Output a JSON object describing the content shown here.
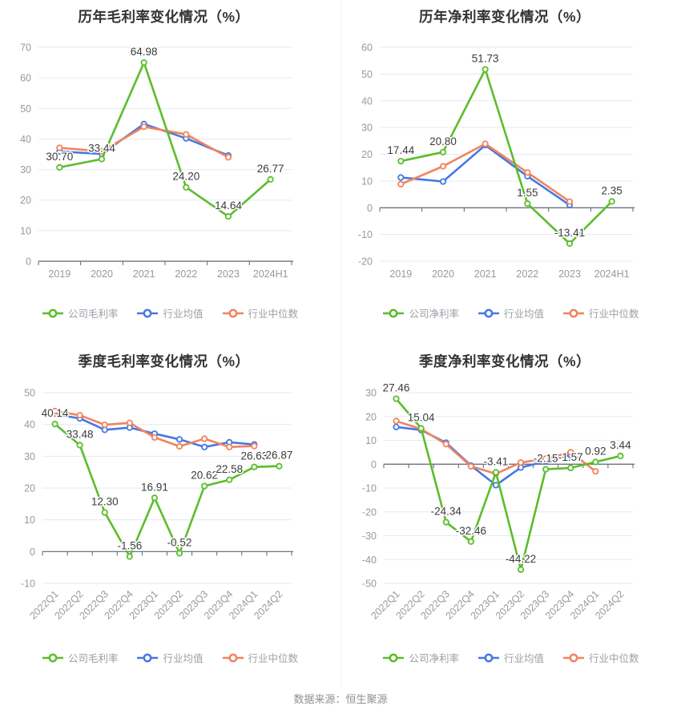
{
  "page": {
    "footer": "数据来源：恒生聚源",
    "background": "#ffffff"
  },
  "colors": {
    "company": "#5bbd2b",
    "industry_avg": "#4678e3",
    "industry_median": "#f2835b",
    "grid_line": "#e4eaf4",
    "axis_line": "#5e6470",
    "tick_label": "#999999",
    "data_label": "#3b3b3b",
    "title": "#333333"
  },
  "chart_data": [
    {
      "type": "line",
      "title": "历年毛利率变化情况（%）",
      "categories": [
        "2019",
        "2020",
        "2021",
        "2022",
        "2023",
        "2024H1"
      ],
      "ylim": [
        0,
        70
      ],
      "ytick_step": 10,
      "grid": true,
      "legend_position": "bottom",
      "rotate_x_labels": false,
      "series": [
        {
          "name": "公司毛利率",
          "color": "#5bbd2b",
          "labeled": true,
          "values": [
            30.7,
            33.44,
            64.98,
            24.2,
            14.64,
            26.77
          ]
        },
        {
          "name": "行业均值",
          "color": "#4678e3",
          "labeled": false,
          "values": [
            35.9,
            35.1,
            44.9,
            40.2,
            34.6,
            null
          ]
        },
        {
          "name": "行业中位数",
          "color": "#f2835b",
          "labeled": false,
          "values": [
            37.1,
            36.0,
            44.0,
            41.5,
            34.0,
            null
          ]
        }
      ]
    },
    {
      "type": "line",
      "title": "历年净利率变化情况（%）",
      "categories": [
        "2019",
        "2020",
        "2021",
        "2022",
        "2023",
        "2024H1"
      ],
      "ylim": [
        -20,
        60
      ],
      "ytick_step": 10,
      "grid": true,
      "legend_position": "bottom",
      "rotate_x_labels": false,
      "series": [
        {
          "name": "公司净利率",
          "color": "#5bbd2b",
          "labeled": true,
          "values": [
            17.44,
            20.8,
            51.73,
            1.55,
            -13.41,
            2.35
          ]
        },
        {
          "name": "行业均值",
          "color": "#4678e3",
          "labeled": false,
          "values": [
            11.3,
            9.8,
            23.4,
            11.8,
            1.0,
            null
          ]
        },
        {
          "name": "行业中位数",
          "color": "#f2835b",
          "labeled": false,
          "values": [
            8.8,
            15.5,
            23.9,
            13.2,
            2.3,
            null
          ]
        }
      ]
    },
    {
      "type": "line",
      "title": "季度毛利率变化情况（%）",
      "categories": [
        "2022Q1",
        "2022Q2",
        "2022Q3",
        "2022Q4",
        "2023Q1",
        "2023Q2",
        "2023Q3",
        "2023Q4",
        "2024Q1",
        "2024Q2"
      ],
      "ylim": [
        -10,
        50
      ],
      "ytick_step": 10,
      "grid": true,
      "legend_position": "bottom",
      "rotate_x_labels": true,
      "series": [
        {
          "name": "公司毛利率",
          "color": "#5bbd2b",
          "labeled": true,
          "values": [
            40.14,
            33.48,
            12.3,
            -1.56,
            16.91,
            -0.52,
            20.62,
            22.58,
            26.63,
            26.87
          ]
        },
        {
          "name": "行业均值",
          "color": "#4678e3",
          "labeled": false,
          "values": [
            43.2,
            41.9,
            38.3,
            39.0,
            37.1,
            35.3,
            32.9,
            34.4,
            33.7,
            null
          ]
        },
        {
          "name": "行业中位数",
          "color": "#f2835b",
          "labeled": false,
          "values": [
            44.2,
            42.9,
            39.9,
            40.5,
            35.9,
            33.1,
            35.5,
            32.9,
            33.2,
            null
          ]
        }
      ]
    },
    {
      "type": "line",
      "title": "季度净利率变化情况（%）",
      "categories": [
        "2022Q1",
        "2022Q2",
        "2022Q3",
        "2022Q4",
        "2023Q1",
        "2023Q2",
        "2023Q3",
        "2023Q4",
        "2024Q1",
        "2024Q2"
      ],
      "ylim": [
        -50,
        30
      ],
      "ytick_step": 10,
      "grid": true,
      "legend_position": "bottom",
      "rotate_x_labels": true,
      "series": [
        {
          "name": "公司净利率",
          "color": "#5bbd2b",
          "labeled": true,
          "values": [
            27.46,
            15.04,
            -24.34,
            -32.46,
            -3.41,
            -44.22,
            -2.15,
            -1.57,
            0.92,
            3.44
          ]
        },
        {
          "name": "行业均值",
          "color": "#4678e3",
          "labeled": false,
          "values": [
            15.6,
            14.3,
            9.0,
            -0.6,
            -8.8,
            -1.4,
            1.2,
            3.8,
            null,
            null
          ]
        },
        {
          "name": "行业中位数",
          "color": "#f2835b",
          "labeled": false,
          "values": [
            18.1,
            14.7,
            8.4,
            -0.9,
            -4.0,
            0.7,
            2.3,
            5.0,
            -3.0,
            null
          ]
        }
      ]
    }
  ]
}
